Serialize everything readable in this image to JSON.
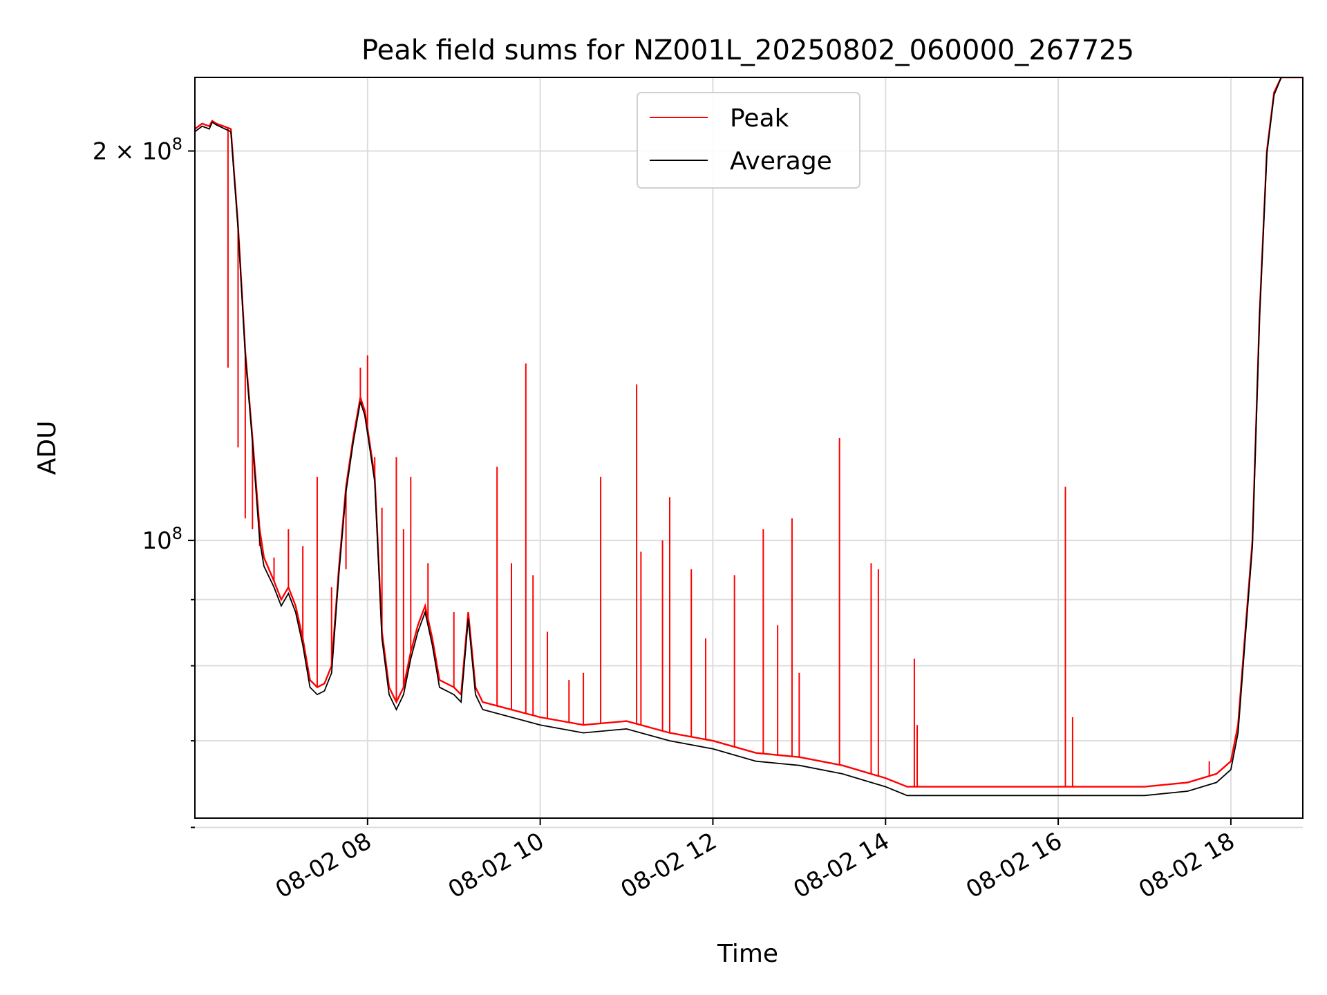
{
  "chart_data": {
    "type": "line",
    "title": "Peak field sums for NZ001L_20250802_060000_267725",
    "xlabel": "Time",
    "ylabel": "ADU",
    "x_ticks": [
      "08-02 08",
      "08-02 10",
      "08-02 12",
      "08-02 14",
      "08-02 16",
      "08-02 18"
    ],
    "y_ticks": [
      {
        "label_base": "10",
        "label_exp": "8",
        "value": 100000000
      },
      {
        "label_base": "2 × 10",
        "label_exp": "8",
        "value": 200000000
      }
    ],
    "y_scale": "log",
    "xlim": [
      "2025-08-02 06:00",
      "2025-08-02 18:50"
    ],
    "ylim": [
      61000000,
      228000000
    ],
    "grid": true,
    "legend_position": "top-center",
    "series": [
      {
        "name": "Peak",
        "color": "#ff0000",
        "points": [
          [
            "2025-08-02 06:00",
            208000000
          ],
          [
            "2025-08-02 06:05",
            210000000
          ],
          [
            "2025-08-02 06:10",
            209000000
          ],
          [
            "2025-08-02 06:12",
            211000000
          ],
          [
            "2025-08-02 06:15",
            210000000
          ],
          [
            "2025-08-02 06:25",
            208000000
          ],
          [
            "2025-08-02 06:30",
            175000000
          ],
          [
            "2025-08-02 06:35",
            140000000
          ],
          [
            "2025-08-02 06:40",
            120000000
          ],
          [
            "2025-08-02 06:45",
            102000000
          ],
          [
            "2025-08-02 06:48",
            97000000
          ],
          [
            "2025-08-02 06:55",
            93000000
          ],
          [
            "2025-08-02 07:00",
            90000000
          ],
          [
            "2025-08-02 07:05",
            92000000
          ],
          [
            "2025-08-02 07:10",
            89000000
          ],
          [
            "2025-08-02 07:15",
            84000000
          ],
          [
            "2025-08-02 07:20",
            78000000
          ],
          [
            "2025-08-02 07:25",
            77000000
          ],
          [
            "2025-08-02 07:30",
            77500000
          ],
          [
            "2025-08-02 07:35",
            80000000
          ],
          [
            "2025-08-02 07:40",
            95000000
          ],
          [
            "2025-08-02 07:45",
            110000000
          ],
          [
            "2025-08-02 07:50",
            120000000
          ],
          [
            "2025-08-02 07:55",
            129000000
          ],
          [
            "2025-08-02 07:58",
            126000000
          ],
          [
            "2025-08-02 08:00",
            122000000
          ],
          [
            "2025-08-02 08:05",
            112000000
          ],
          [
            "2025-08-02 08:10",
            85000000
          ],
          [
            "2025-08-02 08:15",
            77000000
          ],
          [
            "2025-08-02 08:20",
            75000000
          ],
          [
            "2025-08-02 08:25",
            77000000
          ],
          [
            "2025-08-02 08:30",
            82000000
          ],
          [
            "2025-08-02 08:35",
            86000000
          ],
          [
            "2025-08-02 08:40",
            89000000
          ],
          [
            "2025-08-02 08:45",
            84000000
          ],
          [
            "2025-08-02 08:50",
            78000000
          ],
          [
            "2025-08-02 09:00",
            77000000
          ],
          [
            "2025-08-02 09:05",
            76000000
          ],
          [
            "2025-08-02 09:10",
            88000000
          ],
          [
            "2025-08-02 09:15",
            77000000
          ],
          [
            "2025-08-02 09:20",
            75000000
          ],
          [
            "2025-08-02 10:00",
            73000000
          ],
          [
            "2025-08-02 10:30",
            72000000
          ],
          [
            "2025-08-02 11:00",
            72500000
          ],
          [
            "2025-08-02 11:30",
            71000000
          ],
          [
            "2025-08-02 12:00",
            70000000
          ],
          [
            "2025-08-02 12:30",
            68500000
          ],
          [
            "2025-08-02 13:00",
            68000000
          ],
          [
            "2025-08-02 13:30",
            67000000
          ],
          [
            "2025-08-02 14:00",
            65500000
          ],
          [
            "2025-08-02 14:15",
            64500000
          ],
          [
            "2025-08-02 15:00",
            64500000
          ],
          [
            "2025-08-02 16:00",
            64500000
          ],
          [
            "2025-08-02 17:00",
            64500000
          ],
          [
            "2025-08-02 17:30",
            65000000
          ],
          [
            "2025-08-02 17:50",
            66000000
          ],
          [
            "2025-08-02 18:00",
            67500000
          ],
          [
            "2025-08-02 18:05",
            72000000
          ],
          [
            "2025-08-02 18:10",
            85000000
          ],
          [
            "2025-08-02 18:15",
            100000000
          ],
          [
            "2025-08-02 18:20",
            150000000
          ],
          [
            "2025-08-02 18:25",
            200000000
          ],
          [
            "2025-08-02 18:30",
            222000000
          ],
          [
            "2025-08-02 18:35",
            228000000
          ],
          [
            "2025-08-02 18:50",
            228000000
          ]
        ],
        "spikes": [
          [
            "2025-08-02 06:23",
            136000000
          ],
          [
            "2025-08-02 06:30",
            118000000
          ],
          [
            "2025-08-02 06:35",
            104000000
          ],
          [
            "2025-08-02 06:40",
            102000000
          ],
          [
            "2025-08-02 06:45",
            99000000
          ],
          [
            "2025-08-02 06:55",
            97000000
          ],
          [
            "2025-08-02 07:05",
            102000000
          ],
          [
            "2025-08-02 07:15",
            99000000
          ],
          [
            "2025-08-02 07:25",
            112000000
          ],
          [
            "2025-08-02 07:35",
            92000000
          ],
          [
            "2025-08-02 07:45",
            95000000
          ],
          [
            "2025-08-02 07:55",
            136000000
          ],
          [
            "2025-08-02 08:00",
            139000000
          ],
          [
            "2025-08-02 08:05",
            116000000
          ],
          [
            "2025-08-02 08:10",
            106000000
          ],
          [
            "2025-08-02 08:20",
            116000000
          ],
          [
            "2025-08-02 08:25",
            102000000
          ],
          [
            "2025-08-02 08:30",
            112000000
          ],
          [
            "2025-08-02 08:42",
            96000000
          ],
          [
            "2025-08-02 09:00",
            88000000
          ],
          [
            "2025-08-02 09:30",
            114000000
          ],
          [
            "2025-08-02 09:40",
            96000000
          ],
          [
            "2025-08-02 09:55",
            94000000
          ],
          [
            "2025-08-02 10:05",
            85000000
          ],
          [
            "2025-08-02 10:20",
            78000000
          ],
          [
            "2025-08-02 10:30",
            79000000
          ],
          [
            "2025-08-02 09:50",
            137000000
          ],
          [
            "2025-08-02 10:42",
            112000000
          ],
          [
            "2025-08-02 11:07",
            132000000
          ],
          [
            "2025-08-02 11:10",
            98000000
          ],
          [
            "2025-08-02 11:25",
            100000000
          ],
          [
            "2025-08-02 11:30",
            108000000
          ],
          [
            "2025-08-02 11:45",
            95000000
          ],
          [
            "2025-08-02 11:55",
            84000000
          ],
          [
            "2025-08-02 12:15",
            94000000
          ],
          [
            "2025-08-02 12:35",
            102000000
          ],
          [
            "2025-08-02 12:45",
            86000000
          ],
          [
            "2025-08-02 12:55",
            104000000
          ],
          [
            "2025-08-02 13:00",
            79000000
          ],
          [
            "2025-08-02 13:28",
            120000000
          ],
          [
            "2025-08-02 13:50",
            96000000
          ],
          [
            "2025-08-02 13:55",
            95000000
          ],
          [
            "2025-08-02 14:20",
            81000000
          ],
          [
            "2025-08-02 14:22",
            72000000
          ],
          [
            "2025-08-02 16:05",
            110000000
          ],
          [
            "2025-08-02 16:10",
            73000000
          ],
          [
            "2025-08-02 17:45",
            67500000
          ]
        ]
      },
      {
        "name": "Average",
        "color": "#000000",
        "points": [
          [
            "2025-08-02 06:00",
            207000000
          ],
          [
            "2025-08-02 06:05",
            209000000
          ],
          [
            "2025-08-02 06:10",
            208000000
          ],
          [
            "2025-08-02 06:12",
            210500000
          ],
          [
            "2025-08-02 06:15",
            209500000
          ],
          [
            "2025-08-02 06:25",
            207000000
          ],
          [
            "2025-08-02 06:30",
            174000000
          ],
          [
            "2025-08-02 06:35",
            139000000
          ],
          [
            "2025-08-02 06:40",
            119000000
          ],
          [
            "2025-08-02 06:45",
            100000000
          ],
          [
            "2025-08-02 06:48",
            95500000
          ],
          [
            "2025-08-02 06:55",
            92000000
          ],
          [
            "2025-08-02 07:00",
            89000000
          ],
          [
            "2025-08-02 07:05",
            91000000
          ],
          [
            "2025-08-02 07:10",
            88000000
          ],
          [
            "2025-08-02 07:15",
            83000000
          ],
          [
            "2025-08-02 07:20",
            77000000
          ],
          [
            "2025-08-02 07:25",
            76000000
          ],
          [
            "2025-08-02 07:30",
            76500000
          ],
          [
            "2025-08-02 07:35",
            79000000
          ],
          [
            "2025-08-02 07:40",
            94000000
          ],
          [
            "2025-08-02 07:45",
            109000000
          ],
          [
            "2025-08-02 07:50",
            119000000
          ],
          [
            "2025-08-02 07:55",
            128000000
          ],
          [
            "2025-08-02 07:58",
            125000000
          ],
          [
            "2025-08-02 08:00",
            121000000
          ],
          [
            "2025-08-02 08:05",
            111000000
          ],
          [
            "2025-08-02 08:10",
            84000000
          ],
          [
            "2025-08-02 08:15",
            76000000
          ],
          [
            "2025-08-02 08:20",
            74000000
          ],
          [
            "2025-08-02 08:25",
            76000000
          ],
          [
            "2025-08-02 08:30",
            81000000
          ],
          [
            "2025-08-02 08:35",
            85000000
          ],
          [
            "2025-08-02 08:40",
            88000000
          ],
          [
            "2025-08-02 08:45",
            83000000
          ],
          [
            "2025-08-02 08:50",
            77000000
          ],
          [
            "2025-08-02 09:00",
            76000000
          ],
          [
            "2025-08-02 09:05",
            75000000
          ],
          [
            "2025-08-02 09:10",
            87000000
          ],
          [
            "2025-08-02 09:15",
            76000000
          ],
          [
            "2025-08-02 09:20",
            74000000
          ],
          [
            "2025-08-02 10:00",
            72000000
          ],
          [
            "2025-08-02 10:30",
            71000000
          ],
          [
            "2025-08-02 11:00",
            71500000
          ],
          [
            "2025-08-02 11:30",
            70000000
          ],
          [
            "2025-08-02 12:00",
            69000000
          ],
          [
            "2025-08-02 12:30",
            67500000
          ],
          [
            "2025-08-02 13:00",
            67000000
          ],
          [
            "2025-08-02 13:30",
            66000000
          ],
          [
            "2025-08-02 14:00",
            64500000
          ],
          [
            "2025-08-02 14:15",
            63500000
          ],
          [
            "2025-08-02 15:00",
            63500000
          ],
          [
            "2025-08-02 16:00",
            63500000
          ],
          [
            "2025-08-02 17:00",
            63500000
          ],
          [
            "2025-08-02 17:30",
            64000000
          ],
          [
            "2025-08-02 17:50",
            65000000
          ],
          [
            "2025-08-02 18:00",
            66500000
          ],
          [
            "2025-08-02 18:05",
            71000000
          ],
          [
            "2025-08-02 18:10",
            84000000
          ],
          [
            "2025-08-02 18:15",
            99000000
          ],
          [
            "2025-08-02 18:20",
            149000000
          ],
          [
            "2025-08-02 18:25",
            199000000
          ],
          [
            "2025-08-02 18:30",
            221000000
          ],
          [
            "2025-08-02 18:35",
            228000000
          ],
          [
            "2025-08-02 18:50",
            228000000
          ]
        ]
      }
    ]
  }
}
